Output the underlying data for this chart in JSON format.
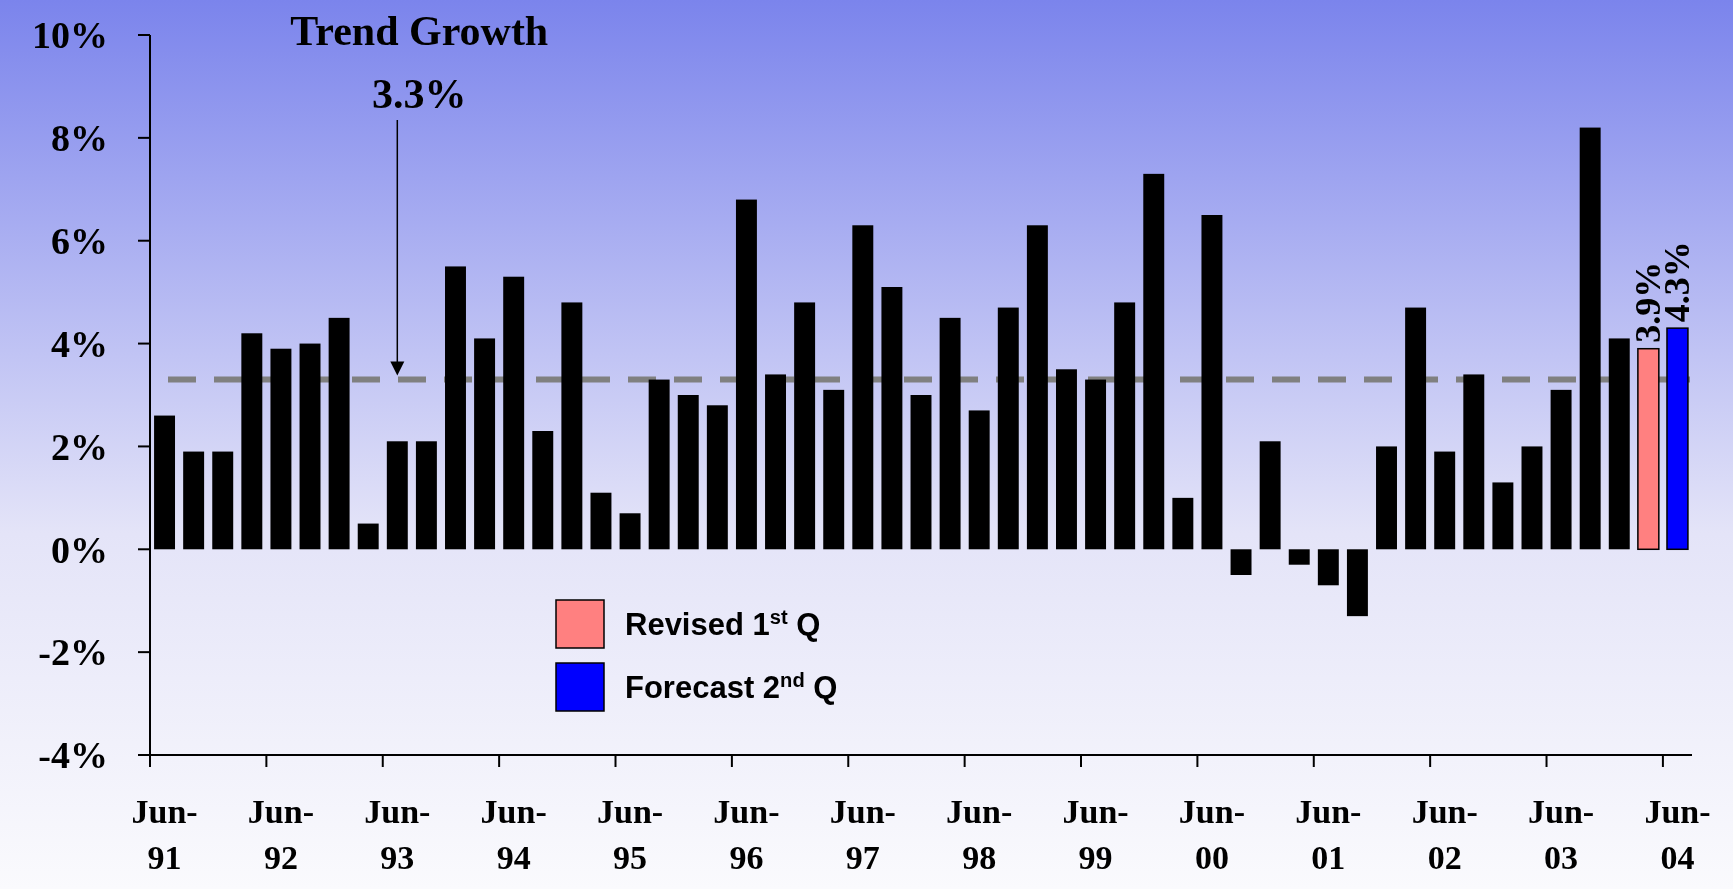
{
  "chart_data": {
    "type": "bar",
    "categories": [
      "Jun-91",
      null,
      null,
      null,
      "Jun-92",
      null,
      null,
      null,
      "Jun-93",
      null,
      null,
      null,
      "Jun-94",
      null,
      null,
      null,
      "Jun-95",
      null,
      null,
      null,
      "Jun-96",
      null,
      null,
      null,
      "Jun-97",
      null,
      null,
      null,
      "Jun-98",
      null,
      null,
      null,
      "Jun-99",
      null,
      null,
      null,
      "Jun-00",
      null,
      null,
      null,
      "Jun-01",
      null,
      null,
      null,
      "Jun-02",
      null,
      null,
      null,
      "Jun-03",
      null,
      null,
      null,
      "Jun-04"
    ],
    "series": [
      {
        "color": "#000000",
        "values": [
          2.6,
          1.9,
          1.9,
          4.2,
          3.9,
          4.0,
          4.5,
          0.5,
          2.1,
          2.1,
          5.5,
          4.1,
          5.3,
          2.3,
          4.8,
          1.1,
          0.7,
          3.3,
          3.0,
          2.8,
          6.8,
          3.4,
          4.8,
          3.1,
          6.3,
          5.1,
          3.0,
          4.5,
          2.7,
          4.7,
          6.3,
          3.5,
          3.3,
          4.8,
          7.3,
          1.0,
          6.5,
          -0.5,
          2.1,
          -0.3,
          -0.7,
          -1.3,
          2.0,
          4.7,
          1.9,
          3.4,
          1.3,
          2.0,
          3.1,
          8.2,
          4.1,
          null,
          null
        ]
      },
      {
        "name": "Revised 1$^{st}$ Q",
        "color": "#ff8080",
        "values": [
          null,
          null,
          null,
          null,
          null,
          null,
          null,
          null,
          null,
          null,
          null,
          null,
          null,
          null,
          null,
          null,
          null,
          null,
          null,
          null,
          null,
          null,
          null,
          null,
          null,
          null,
          null,
          null,
          null,
          null,
          null,
          null,
          null,
          null,
          null,
          null,
          null,
          null,
          null,
          null,
          null,
          null,
          null,
          null,
          null,
          null,
          null,
          null,
          null,
          null,
          null,
          3.9,
          null
        ],
        "value_labels": [
          null,
          null,
          null,
          null,
          null,
          null,
          null,
          null,
          null,
          null,
          null,
          null,
          null,
          null,
          null,
          null,
          null,
          null,
          null,
          null,
          null,
          null,
          null,
          null,
          null,
          null,
          null,
          null,
          null,
          null,
          null,
          null,
          null,
          null,
          null,
          null,
          null,
          null,
          null,
          null,
          null,
          null,
          null,
          null,
          null,
          null,
          null,
          null,
          null,
          null,
          null,
          "3.9%",
          null
        ]
      },
      {
        "name": "Forecast 2$^{nd}$ Q",
        "color": "#0000ff",
        "values": [
          null,
          null,
          null,
          null,
          null,
          null,
          null,
          null,
          null,
          null,
          null,
          null,
          null,
          null,
          null,
          null,
          null,
          null,
          null,
          null,
          null,
          null,
          null,
          null,
          null,
          null,
          null,
          null,
          null,
          null,
          null,
          null,
          null,
          null,
          null,
          null,
          null,
          null,
          null,
          null,
          null,
          null,
          null,
          null,
          null,
          null,
          null,
          null,
          null,
          null,
          null,
          null,
          4.3
        ],
        "value_labels": [
          null,
          null,
          null,
          null,
          null,
          null,
          null,
          null,
          null,
          null,
          null,
          null,
          null,
          null,
          null,
          null,
          null,
          null,
          null,
          null,
          null,
          null,
          null,
          null,
          null,
          null,
          null,
          null,
          null,
          null,
          null,
          null,
          null,
          null,
          null,
          null,
          null,
          null,
          null,
          null,
          null,
          null,
          null,
          null,
          null,
          null,
          null,
          null,
          null,
          null,
          null,
          null,
          "4.3%"
        ]
      }
    ],
    "ylim": [
      -4,
      10
    ],
    "yticks": [
      {
        "value": -4,
        "label": "-4%"
      },
      {
        "value": -2,
        "label": "-2%"
      },
      {
        "value": 0,
        "label": "0%"
      },
      {
        "value": 2,
        "label": "2%"
      },
      {
        "value": 4,
        "label": "4%"
      },
      {
        "value": 6,
        "label": "6%"
      },
      {
        "value": 8,
        "label": "8%"
      },
      {
        "value": 10,
        "label": "10%"
      }
    ],
    "ref_lines": [
      {
        "axis": "y",
        "value": 3.3,
        "color": "#808080",
        "line_style": "dashed"
      }
    ],
    "annotations": [
      "Trend Growth",
      "3.3%"
    ],
    "legend": "bottom left",
    "grid": false
  }
}
